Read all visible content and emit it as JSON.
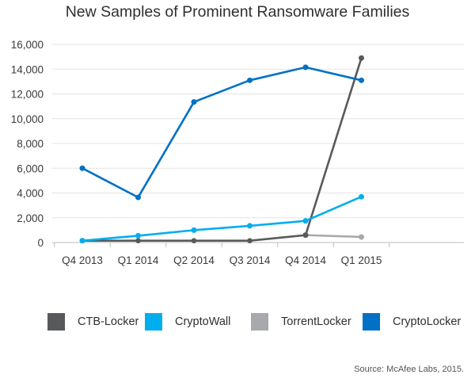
{
  "chart_data": {
    "type": "line",
    "title": "New Samples of Prominent Ransomware Families",
    "xlabel": "",
    "ylabel": "",
    "categories": [
      "Q4 2013",
      "Q1 2014",
      "Q2 2014",
      "Q3 2014",
      "Q4 2014",
      "Q1 2015"
    ],
    "y_ticks": [
      "0",
      "2,000",
      "4,000",
      "6,000",
      "8,000",
      "10,000",
      "12,000",
      "14,000",
      "16,000"
    ],
    "ylim": [
      0,
      16000
    ],
    "grid": true,
    "legend_position": "bottom",
    "series": [
      {
        "name": "CTB-Locker",
        "color": "#58595b",
        "values": [
          null,
          null,
          null,
          null,
          600,
          14900
        ],
        "baseline": [
          150,
          150,
          150,
          150
        ]
      },
      {
        "name": "CryptoWall",
        "color": "#00aeef",
        "values": [
          150,
          550,
          1000,
          1350,
          1750,
          3700
        ]
      },
      {
        "name": "TorrentLocker",
        "color": "#a7a9ac",
        "values": [
          null,
          null,
          null,
          null,
          600,
          450
        ]
      },
      {
        "name": "CryptoLocker",
        "color": "#0071c5",
        "values": [
          6000,
          3650,
          11350,
          13100,
          14150,
          13100
        ]
      }
    ]
  },
  "source": "Source: McAfee Labs, 2015."
}
